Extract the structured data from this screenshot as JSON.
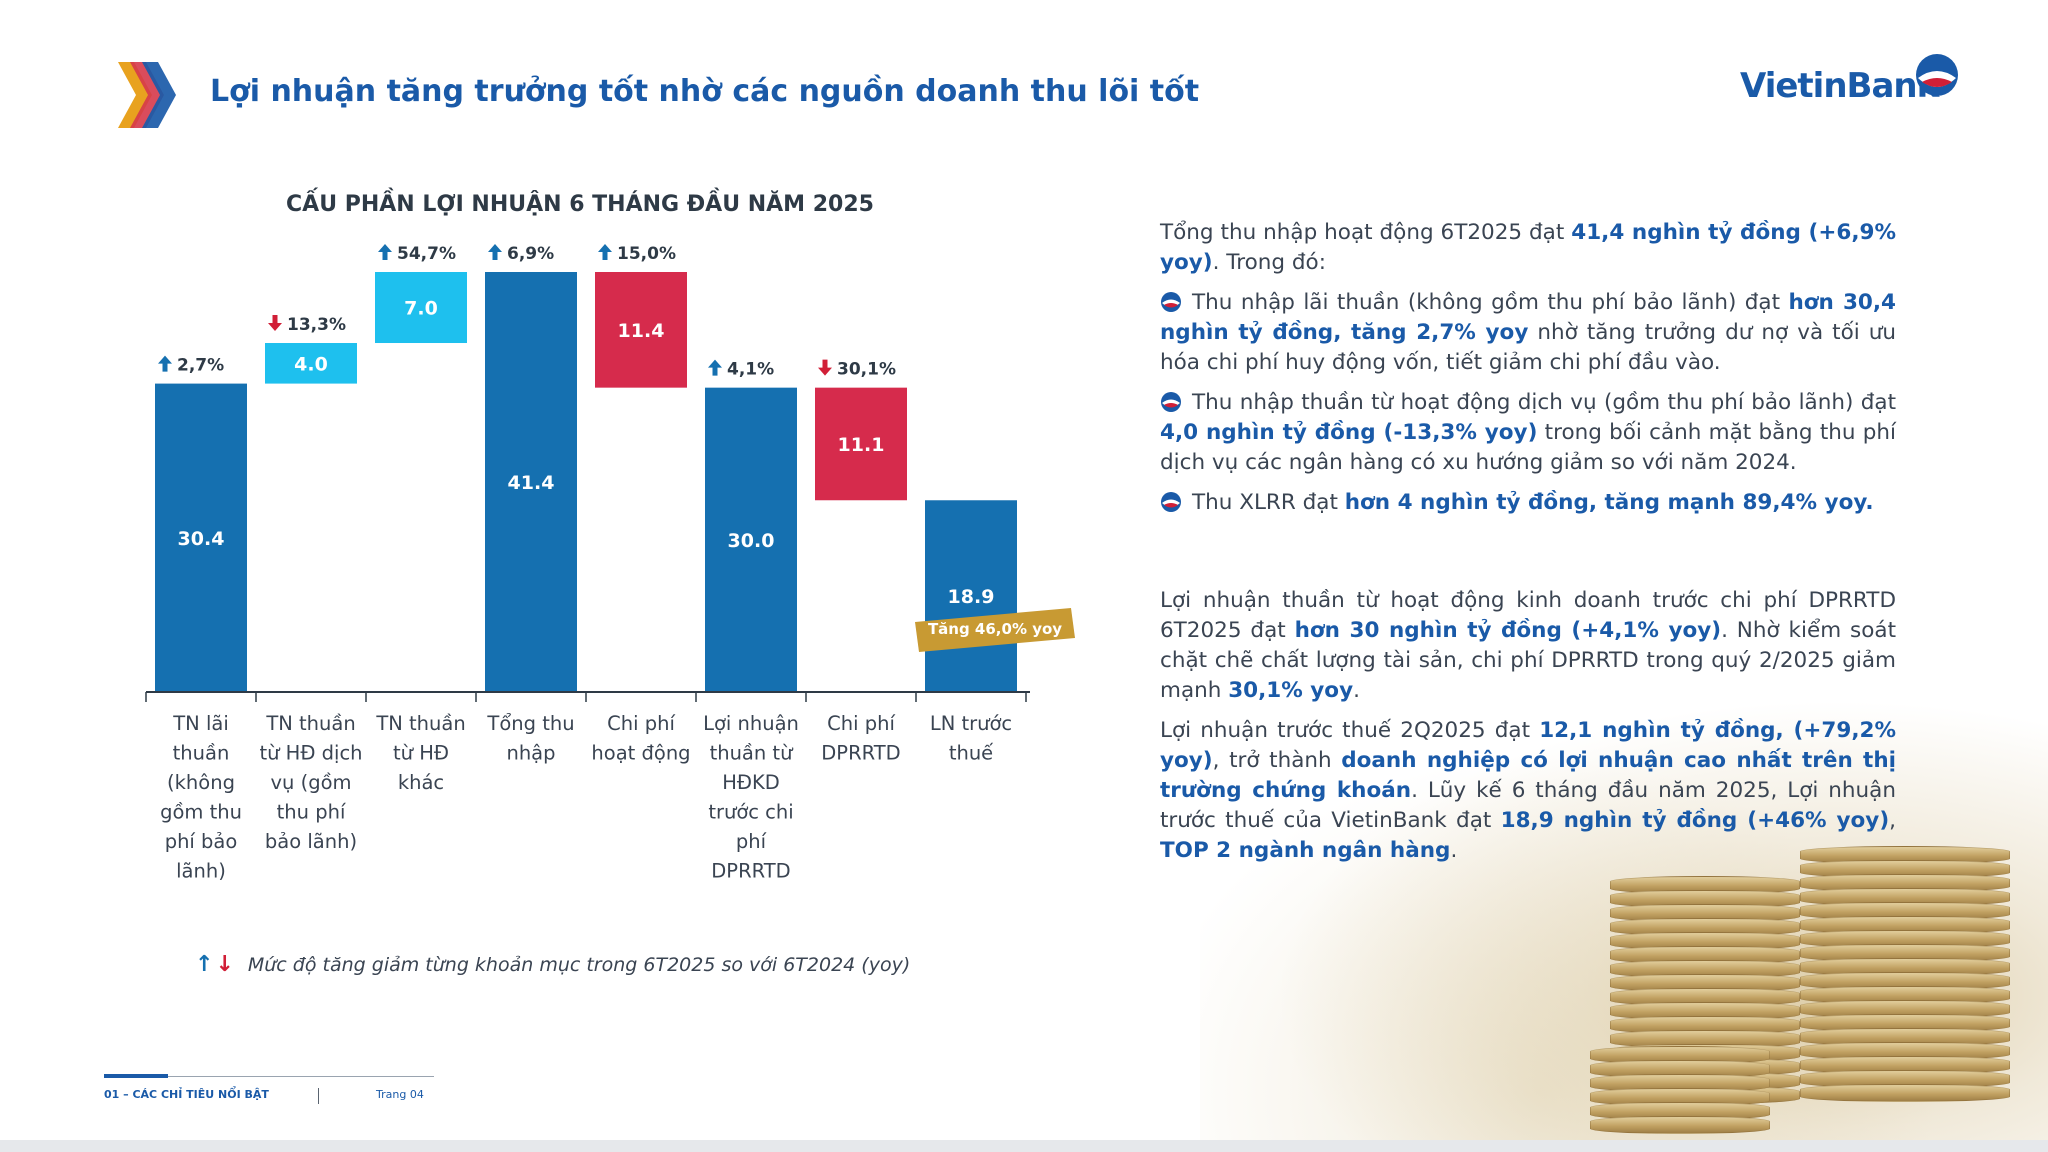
{
  "header": {
    "title": "Lợi nhuận tăng trưởng tốt nhờ các nguồn doanh thu lõi tốt",
    "brand": "VietinBank"
  },
  "colors": {
    "blue": "#1570b0",
    "light_blue": "#1ec0ee",
    "red": "#d62b4c",
    "gold": "#c89a33",
    "text_blue": "#1a5aa8"
  },
  "chart_data": {
    "type": "waterfall-bar",
    "title": "CẤU PHẦN LỢI NHUẬN 6 THÁNG ĐẦU NĂM 2025",
    "unit": "",
    "categories": [
      "TN lãi thuần (không gồm thu phí bảo lãnh)",
      "TN thuần từ HĐ dịch vụ (gồm thu phí bảo lãnh)",
      "TN thuần từ HĐ khác",
      "Tổng thu nhập",
      "Chi phí hoạt động",
      "Lợi nhuận thuần từ HĐKD trước chi phí DPRRTD",
      "Chi phí DPRRTD",
      "LN trước thuế"
    ],
    "category_lines": [
      [
        "TN lãi",
        "thuần",
        "(không",
        "gồm thu",
        "phí bảo",
        "lãnh)"
      ],
      [
        "TN thuần",
        "từ HĐ dịch",
        "vụ (gồm",
        "thu phí",
        "bảo lãnh)"
      ],
      [
        "TN thuần",
        "từ HĐ",
        "khác"
      ],
      [
        "Tổng thu",
        "nhập"
      ],
      [
        "Chi phí",
        "hoạt động"
      ],
      [
        "Lợi nhuận",
        "thuần từ",
        "HĐKD",
        "trước chi",
        "phí",
        "DPRRTD"
      ],
      [
        "Chi phí",
        "DPRRTD"
      ],
      [
        "LN trước",
        "thuế"
      ]
    ],
    "bars": [
      {
        "label": "30.4",
        "start": 0,
        "end": 30.4,
        "kind": "total",
        "change": "2,7%",
        "direction": "up"
      },
      {
        "label": "4.0",
        "start": 30.4,
        "end": 34.4,
        "kind": "increase",
        "change": "13,3%",
        "direction": "down"
      },
      {
        "label": "7.0",
        "start": 34.4,
        "end": 41.4,
        "kind": "increase",
        "change": "54,7%",
        "direction": "up"
      },
      {
        "label": "41.4",
        "start": 0,
        "end": 41.4,
        "kind": "total",
        "change": "6,9%",
        "direction": "up"
      },
      {
        "label": "11.4",
        "start": 30.0,
        "end": 41.4,
        "kind": "decrease",
        "change": "15,0%",
        "direction": "up"
      },
      {
        "label": "30.0",
        "start": 0,
        "end": 30.0,
        "kind": "total",
        "change": "4,1%",
        "direction": "up"
      },
      {
        "label": "11.1",
        "start": 18.9,
        "end": 30.0,
        "kind": "decrease",
        "change": "30,1%",
        "direction": "down"
      },
      {
        "label": "18.9",
        "start": 0,
        "end": 18.9,
        "kind": "total",
        "change": "",
        "direction": ""
      }
    ],
    "ylim": [
      0,
      41.4
    ],
    "annotation": "Tăng 46,0% yoy",
    "legend_text": "Mức độ tăng giảm từng khoản mục trong 6T2025 so với 6T2024 (yoy)"
  },
  "text": {
    "p1": [
      {
        "t": "Tổng thu nhập hoạt động 6T2025 đạt "
      },
      {
        "t": "41,4 nghìn tỷ đồng (+6,9% yoy)",
        "hl": true
      },
      {
        "t": ". Trong đó:"
      }
    ],
    "b1": [
      {
        "t": "Thu nhập lãi thuần (không gồm thu phí bảo lãnh) đạt "
      },
      {
        "t": "hơn 30,4 nghìn tỷ đồng, tăng 2,7% yoy",
        "hl": true
      },
      {
        "t": " nhờ tăng trưởng dư nợ và tối ưu hóa chi phí huy động vốn, tiết giảm chi phí đầu vào."
      }
    ],
    "b2": [
      {
        "t": "Thu nhập thuần từ hoạt động dịch vụ (gồm thu phí bảo lãnh) đạt "
      },
      {
        "t": "4,0 nghìn tỷ đồng (-13,3% yoy)",
        "hl": true
      },
      {
        "t": " trong bối cảnh mặt bằng thu phí dịch vụ các ngân hàng có xu hướng giảm so với năm 2024."
      }
    ],
    "b3": [
      {
        "t": "Thu XLRR đạt "
      },
      {
        "t": "hơn 4 nghìn tỷ đồng, tăng mạnh 89,4% yoy.",
        "hl": true
      }
    ],
    "p2": [
      {
        "t": "Lợi nhuận thuần từ hoạt động kinh doanh trước chi phí DPRRTD 6T2025 đạt "
      },
      {
        "t": "hơn 30 nghìn tỷ đồng (+4,1% yoy)",
        "hl": true
      },
      {
        "t": ". Nhờ kiểm soát chặt chẽ chất lượng tài sản, chi phí DPRRTD trong quý 2/2025 giảm mạnh "
      },
      {
        "t": "30,1% yoy",
        "hl": true
      },
      {
        "t": "."
      }
    ],
    "p3": [
      {
        "t": "Lợi nhuận trước thuế 2Q2025 đạt "
      },
      {
        "t": "12,1 nghìn tỷ đồng, (+79,2% yoy)",
        "hl": true
      },
      {
        "t": ", trở thành "
      },
      {
        "t": "doanh nghiệp có lợi nhuận cao nhất trên thị trường chứng khoán",
        "hl": true
      },
      {
        "t": ". Lũy kế 6 tháng đầu năm 2025, Lợi nhuận trước thuế của VietinBank đạt "
      },
      {
        "t": "18,9 nghìn tỷ đồng (+46% yoy)",
        "hl": true
      },
      {
        "t": ", "
      },
      {
        "t": "TOP 2 ngành ngân hàng",
        "hl": true
      },
      {
        "t": "."
      }
    ]
  },
  "footer": {
    "section": "01 – CÁC CHỈ TIÊU NỔI BẬT",
    "page": "Trang 04"
  }
}
